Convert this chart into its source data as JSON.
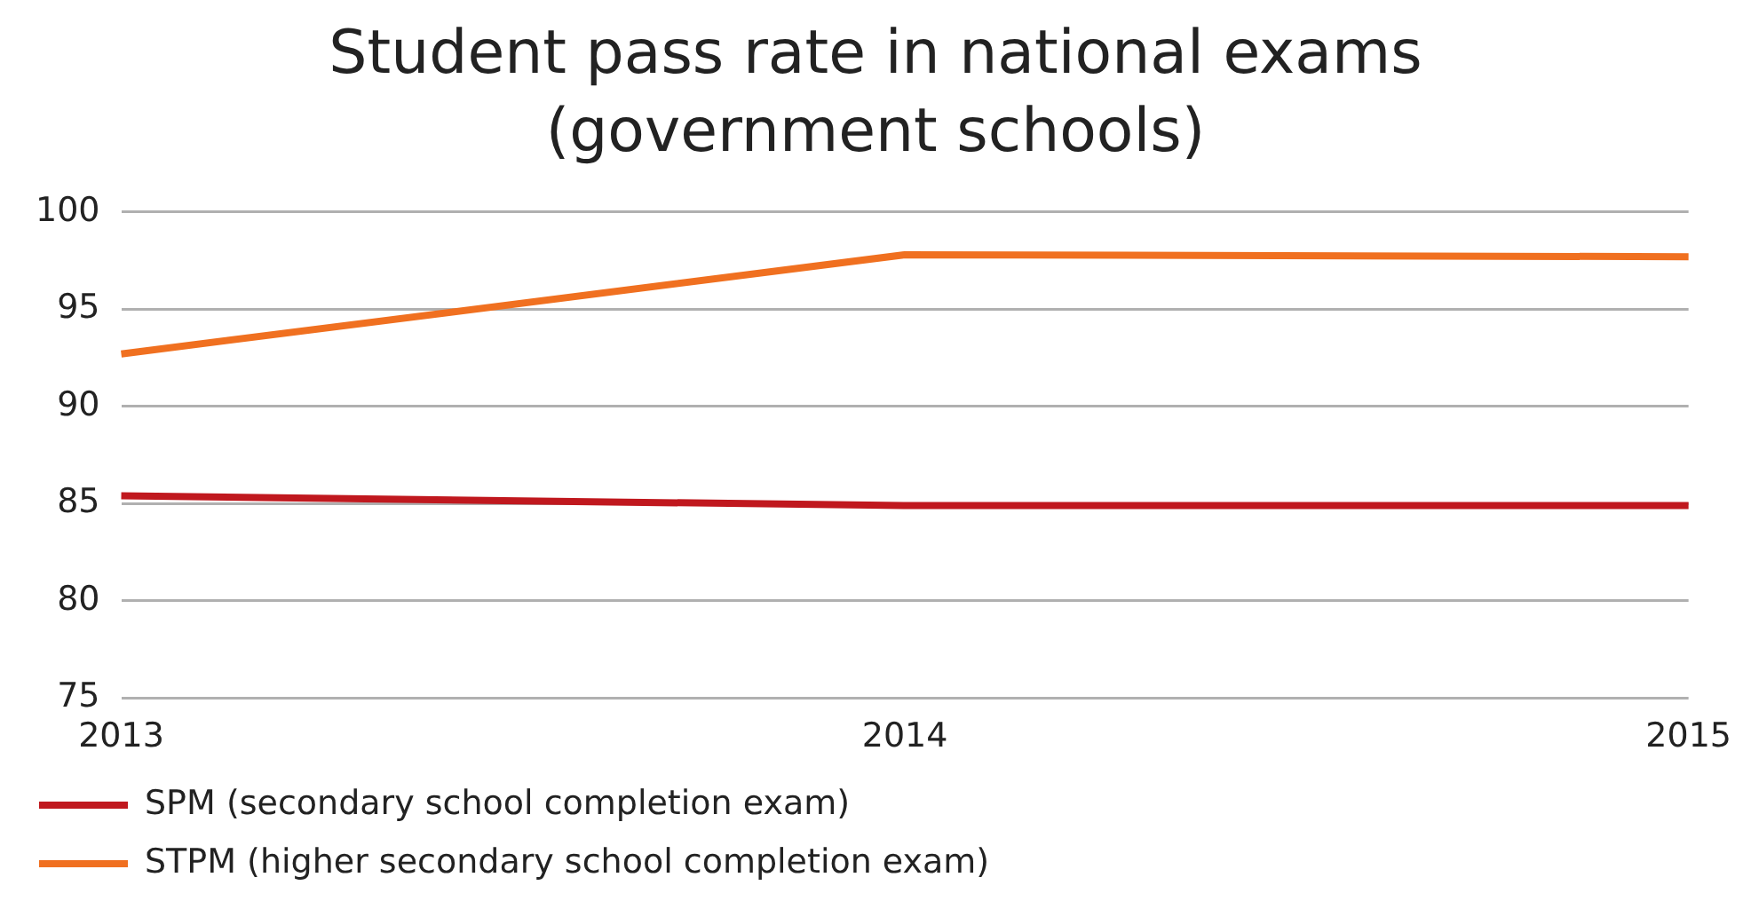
{
  "chart_data": {
    "type": "line",
    "title": "Student pass rate in national exams (government schools)",
    "categories": [
      "2013",
      "2014",
      "2015"
    ],
    "series": [
      {
        "name": "SPM (secondary school completion exam)",
        "color": "#c0181e",
        "values": [
          85.4,
          84.9,
          84.9
        ]
      },
      {
        "name": "STPM (higher secondary school completion exam)",
        "color": "#f07020",
        "values": [
          92.7,
          97.8,
          97.7
        ]
      }
    ],
    "ylim": [
      75,
      100
    ],
    "yticks": [
      75,
      80,
      85,
      90,
      95,
      100
    ],
    "grid": "y",
    "legend": "bottom",
    "marker": "none",
    "line_style": "solid"
  }
}
